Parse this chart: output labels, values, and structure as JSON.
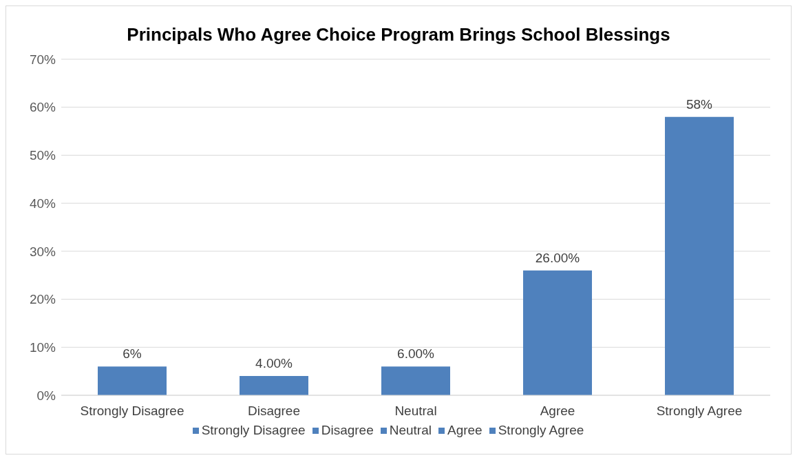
{
  "chart_data": {
    "type": "bar",
    "title": "Principals Who Agree Choice Program Brings School Blessings",
    "categories": [
      "Strongly Disagree",
      "Disagree",
      "Neutral",
      "Agree",
      "Strongly Agree"
    ],
    "series": [
      {
        "name": "Strongly Disagree",
        "color": "#4f81bd",
        "values": [
          6,
          null,
          null,
          null,
          null
        ],
        "value_labels": [
          "6%",
          null,
          null,
          null,
          null
        ]
      },
      {
        "name": "Disagree",
        "color": "#4f81bd",
        "values": [
          null,
          4,
          null,
          null,
          null
        ],
        "value_labels": [
          null,
          "4.00%",
          null,
          null,
          null
        ]
      },
      {
        "name": "Neutral",
        "color": "#4f81bd",
        "values": [
          null,
          null,
          6,
          null,
          null
        ],
        "value_labels": [
          null,
          null,
          "6.00%",
          null,
          null
        ]
      },
      {
        "name": "Agree",
        "color": "#4f81bd",
        "values": [
          null,
          null,
          null,
          26,
          null
        ],
        "value_labels": [
          null,
          null,
          null,
          "26.00%",
          null
        ]
      },
      {
        "name": "Strongly Agree",
        "color": "#4f81bd",
        "values": [
          null,
          null,
          null,
          null,
          58
        ],
        "value_labels": [
          null,
          null,
          null,
          null,
          "58%"
        ]
      }
    ],
    "stacked": true,
    "ylim": [
      0,
      70
    ],
    "yticks": [
      {
        "value": 0,
        "label": "0%"
      },
      {
        "value": 10,
        "label": "10%"
      },
      {
        "value": 20,
        "label": "20%"
      },
      {
        "value": 30,
        "label": "30%"
      },
      {
        "value": 40,
        "label": "40%"
      },
      {
        "value": 50,
        "label": "50%"
      },
      {
        "value": 60,
        "label": "60%"
      },
      {
        "value": 70,
        "label": "70%"
      }
    ],
    "grid": "y",
    "legend": "bottom"
  }
}
